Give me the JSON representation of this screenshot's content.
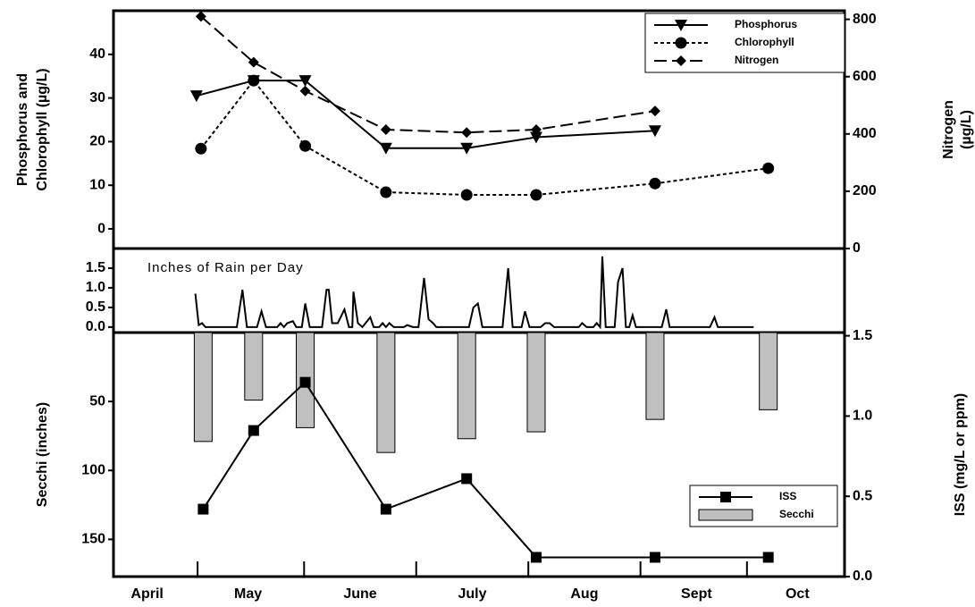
{
  "chart_data": [
    {
      "type": "line",
      "y_label": [
        "Phosphorus and",
        "Chlorophyll (µg/L)"
      ],
      "y2_label": [
        "Nitrogen",
        "(µg/L)"
      ],
      "xlim": [
        4.3,
        10.82
      ],
      "ylim": [
        -4.5,
        50
      ],
      "yticks": [
        0,
        10,
        20,
        30,
        40
      ],
      "y2lim": [
        0,
        830
      ],
      "y2ticks": [
        0,
        200,
        400,
        600,
        800
      ],
      "legend": "upper right",
      "series": [
        {
          "name": "Phosphorus",
          "color": "#000000",
          "marker": "triangle-down",
          "dash": "solid",
          "x": [
            5.04,
            5.55,
            6.01,
            6.73,
            7.45,
            8.07,
            9.13
          ],
          "values": [
            30.5,
            34,
            34,
            18.5,
            18.5,
            21,
            22.5
          ]
        },
        {
          "name": "Chlorophyll",
          "color": "#000000",
          "marker": "circle",
          "dash": "dotted",
          "x": [
            5.08,
            5.55,
            6.01,
            6.73,
            7.45,
            8.07,
            9.13,
            10.14
          ],
          "values": [
            18.4,
            34,
            19,
            8.4,
            7.8,
            7.8,
            10.4,
            13.9
          ]
        },
        {
          "name": "Nitrogen",
          "color": "#000000",
          "marker": "diamond",
          "dash": "dashed",
          "axis": "y2",
          "x": [
            5.08,
            5.55,
            6.01,
            6.73,
            7.45,
            8.07,
            9.13
          ],
          "values": [
            810,
            650,
            550,
            415,
            405,
            415,
            480
          ]
        }
      ]
    },
    {
      "type": "line",
      "annotation": "Inches of Rain per Day",
      "xlim": [
        4.3,
        10.82
      ],
      "ylim": [
        -0.14,
        2.0
      ],
      "yticks": [
        {
          "value": 0,
          "label": "0.0"
        },
        0.5,
        {
          "value": 1,
          "label": "1.0"
        },
        1.5
      ],
      "color": "#000000",
      "x": [
        5.03,
        5.06,
        5.09,
        5.12,
        5.4,
        5.45,
        5.49,
        5.58,
        5.62,
        5.66,
        5.76,
        5.79,
        5.82,
        5.85,
        5.9,
        5.93,
        5.98,
        6.01,
        6.05,
        6.16,
        6.2,
        6.22,
        6.25,
        6.3,
        6.36,
        6.4,
        6.43,
        6.44,
        6.48,
        6.52,
        6.59,
        6.62,
        6.67,
        6.7,
        6.73,
        6.76,
        6.8,
        6.89,
        6.92,
        6.97,
        7.02,
        7.07,
        7.11,
        7.15,
        7.18,
        7.47,
        7.51,
        7.55,
        7.59,
        7.77,
        7.82,
        7.86,
        7.94,
        7.97,
        8.01,
        8.11,
        8.15,
        8.19,
        8.23,
        8.45,
        8.48,
        8.52,
        8.58,
        8.61,
        8.64,
        8.66,
        8.69,
        8.77,
        8.8,
        8.84,
        8.87,
        8.9,
        8.93,
        8.96,
        9.19,
        9.23,
        9.26,
        9.62,
        9.66,
        9.69,
        10.01
      ],
      "values": [
        0.85,
        0.05,
        0.1,
        0,
        0,
        0.95,
        0,
        0,
        0.4,
        0,
        0,
        0.1,
        0,
        0.1,
        0.15,
        0,
        0,
        0.6,
        0,
        0,
        0.95,
        0.95,
        0.1,
        0.1,
        0.45,
        0,
        0,
        0.9,
        0.1,
        0,
        0.25,
        0,
        0,
        0.1,
        0,
        0.1,
        0,
        0,
        0.05,
        0,
        0,
        1.25,
        0.2,
        0.1,
        0,
        0,
        0.5,
        0.6,
        0,
        0,
        1.5,
        0,
        0,
        0.4,
        0,
        0,
        0.1,
        0.1,
        0,
        0,
        0.1,
        0,
        0,
        0.1,
        0,
        1.8,
        0,
        0,
        1.15,
        1.5,
        0,
        0,
        0.3,
        0,
        0,
        0.45,
        0,
        0,
        0.25,
        0,
        0
      ]
    },
    {
      "type": "bar-line",
      "y_label": "Secchi (inches)",
      "y2_label": "ISS (mg/L or ppm)",
      "xlim": [
        4.3,
        10.82
      ],
      "xticks": [
        {
          "value": 4.6,
          "label": "April"
        },
        {
          "value": 5.5,
          "label": "May"
        },
        {
          "value": 6.5,
          "label": "June"
        },
        {
          "value": 7.5,
          "label": "July"
        },
        {
          "value": 8.5,
          "label": "Aug"
        },
        {
          "value": 9.5,
          "label": "Sept"
        },
        {
          "value": 10.4,
          "label": "Oct"
        }
      ],
      "ylim": [
        177,
        0
      ],
      "yticks": [
        50,
        100,
        150
      ],
      "y2lim": [
        0,
        1.52
      ],
      "y2ticks": [
        {
          "value": 0,
          "label": "0.0"
        },
        0.5,
        {
          "value": 1,
          "label": "1.0"
        },
        1.5
      ],
      "legend": "center right",
      "series": [
        {
          "name": "ISS",
          "type": "line",
          "axis": "y2",
          "color": "#000000",
          "marker": "square",
          "dash": "solid",
          "x": [
            5.1,
            5.55,
            6.01,
            6.73,
            7.45,
            8.07,
            9.13,
            10.14
          ],
          "values": [
            0.42,
            0.91,
            1.21,
            0.42,
            0.61,
            0.12,
            0.12,
            0.12
          ]
        },
        {
          "name": "Secchi",
          "type": "bar",
          "color": "#c0c0c0",
          "x": [
            5.1,
            5.55,
            6.01,
            6.73,
            7.45,
            8.07,
            9.13,
            10.14
          ],
          "values": [
            79,
            49,
            69,
            87,
            77,
            72,
            63,
            56
          ]
        }
      ]
    }
  ]
}
